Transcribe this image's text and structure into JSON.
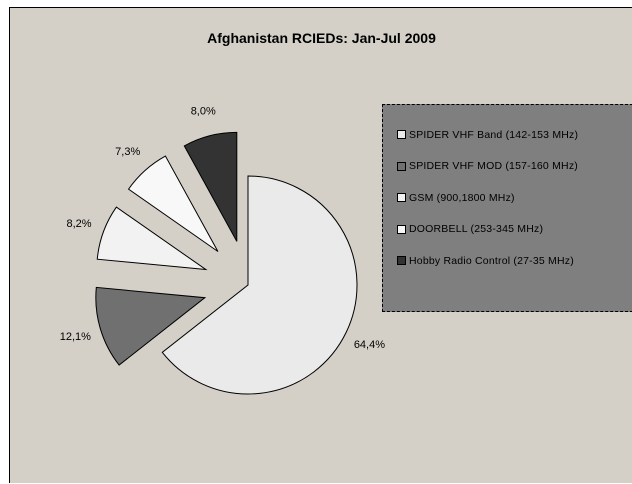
{
  "chart_data": {
    "type": "pie",
    "title": "Afghanistan RCIEDs: Jan-Jul 2009",
    "slices": [
      {
        "name": "SPIDER VHF Band (142-153 MHz)",
        "value": 64.4,
        "label": "64,4%",
        "color": "#eaeaea",
        "exploded": false
      },
      {
        "name": "SPIDER VHF MOD (157-160 MHz)",
        "value": 12.1,
        "label": "12,1%",
        "color": "#707070",
        "exploded": true
      },
      {
        "name": "GSM (900,1800 MHz)",
        "value": 8.2,
        "label": "8,2%",
        "color": "#f2f2f2",
        "exploded": true
      },
      {
        "name": "DOORBELL (253-345 MHz)",
        "value": 7.3,
        "label": "7,3%",
        "color": "#f8f8f8",
        "exploded": true
      },
      {
        "name": "Hobby Radio Control (27-35 MHz)",
        "value": 8.0,
        "label": "8,0%",
        "color": "#333333",
        "exploded": true
      }
    ],
    "legend_position": "right",
    "grid": false
  },
  "colors": {
    "plot_background": "#d4d0c8",
    "legend_background": "#7f7f7f"
  }
}
